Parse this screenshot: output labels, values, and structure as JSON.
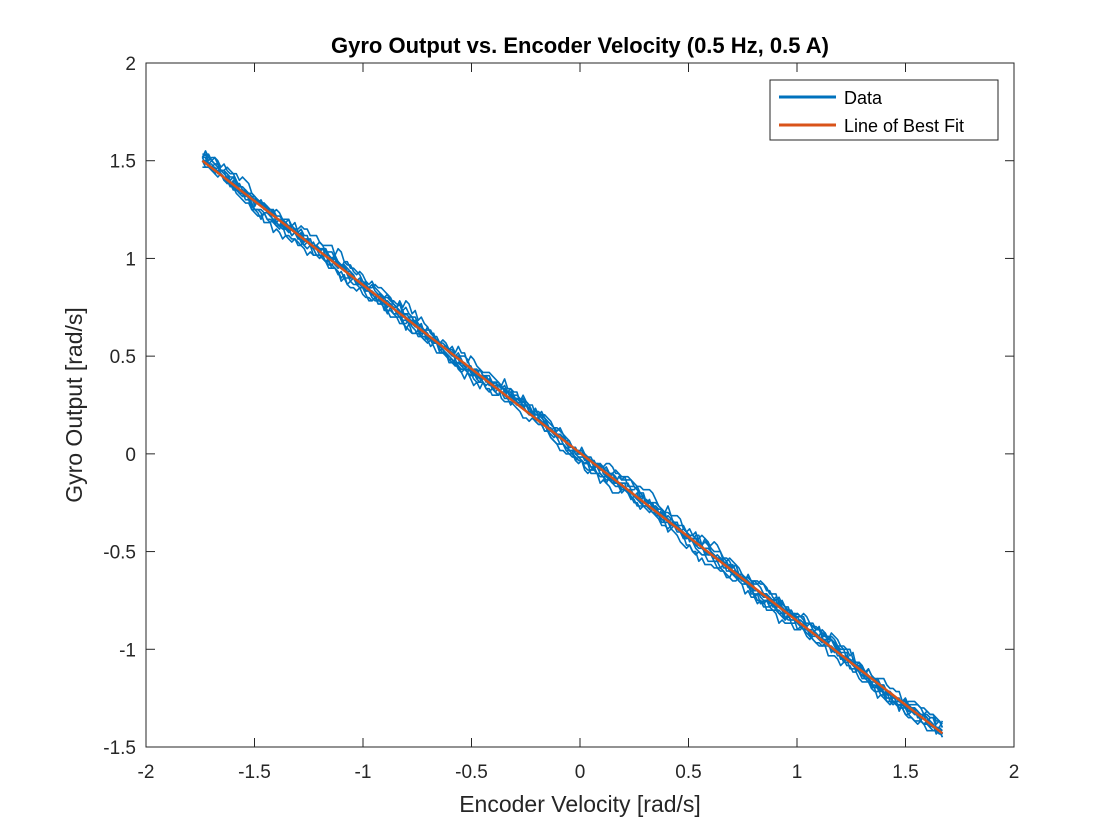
{
  "chart_data": {
    "type": "line",
    "title": "Gyro Output vs. Encoder Velocity (0.5 Hz, 0.5 A)",
    "xlabel": "Encoder Velocity [rad/s]",
    "ylabel": "Gyro Output [rad/s]",
    "xlim": [
      -2,
      2
    ],
    "ylim": [
      -1.5,
      2
    ],
    "xticks": [
      -2,
      -1.5,
      -1,
      -0.5,
      0,
      0.5,
      1,
      1.5,
      2
    ],
    "yticks": [
      -1.5,
      -1,
      -0.5,
      0,
      0.5,
      1,
      1.5,
      2
    ],
    "xtick_labels": [
      "-2",
      "-1.5",
      "-1",
      "-0.5",
      "0",
      "0.5",
      "1",
      "1.5",
      "2"
    ],
    "ytick_labels": [
      "-1.5",
      "-1",
      "-0.5",
      "0",
      "0.5",
      "1",
      "1.5",
      "2"
    ],
    "grid": false,
    "legend_position": "top-right",
    "series": [
      {
        "name": "Data",
        "color": "#0072BD",
        "x_range": [
          -1.74,
          1.67
        ],
        "y_range": [
          1.5,
          -1.43
        ],
        "slope": -0.86,
        "band_halfwidth": 0.07,
        "style": "dense noisy cycles around fit line"
      },
      {
        "name": "Line of Best Fit",
        "color": "#D95319",
        "x": [
          -1.74,
          1.67
        ],
        "y": [
          1.5,
          -1.43
        ]
      }
    ]
  }
}
